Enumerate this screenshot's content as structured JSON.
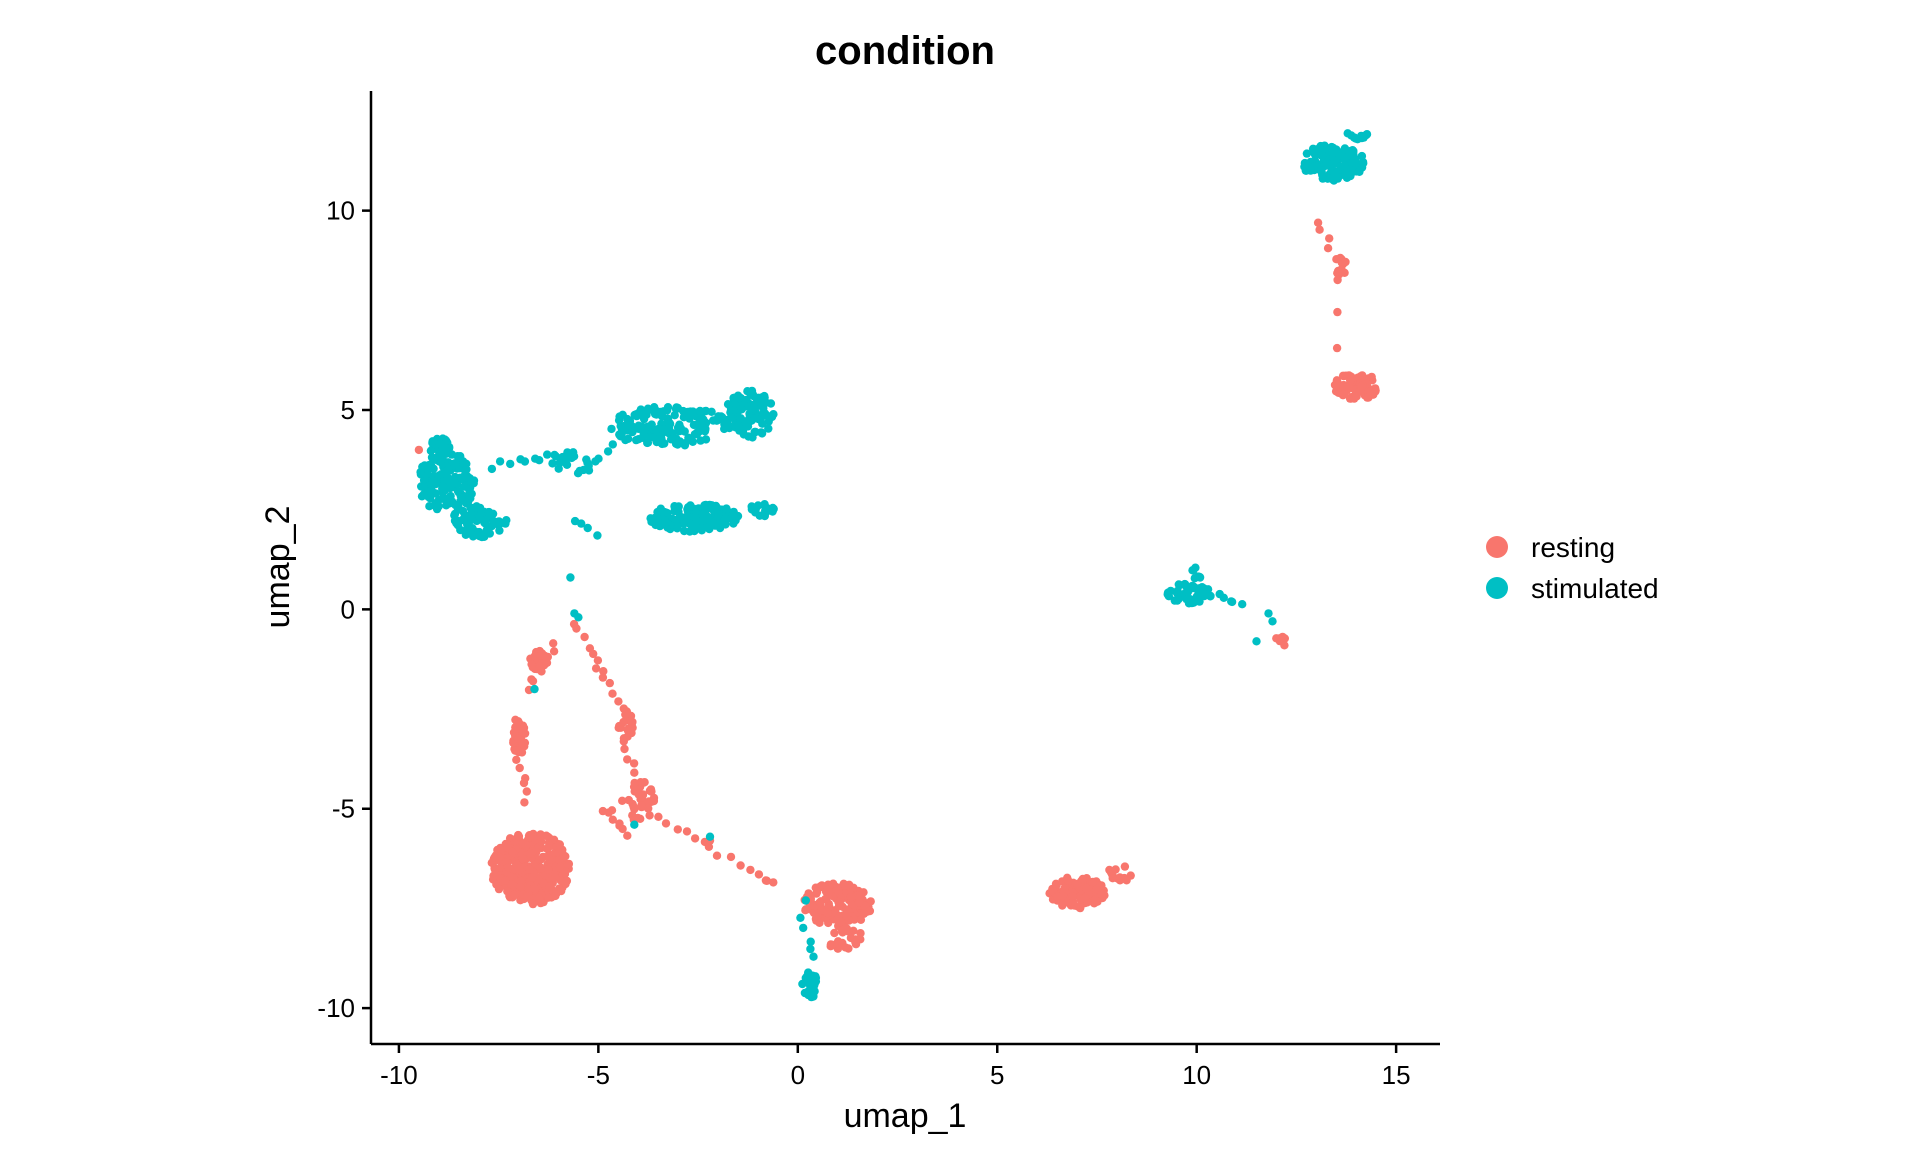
{
  "chart_data": {
    "type": "scatter",
    "title": "condition",
    "xlabel": "umap_1",
    "ylabel": "umap_2",
    "xlim": [
      -10.7,
      16.1
    ],
    "ylim": [
      -10.9,
      13.0
    ],
    "x_ticks": [
      -10,
      -5,
      0,
      5,
      10,
      15
    ],
    "x_tick_labels": [
      "-10",
      "-5",
      "0",
      "5",
      "10",
      "15"
    ],
    "y_ticks": [
      -10,
      -5,
      0,
      5,
      10
    ],
    "y_tick_labels": [
      "-10",
      "-5",
      "0",
      "5",
      "10"
    ],
    "grid": false,
    "legend_position": "right",
    "series": [
      {
        "name": "resting",
        "color": "#F8766D",
        "clusters": [
          {
            "cx": -6.7,
            "cy": -6.5,
            "rx": 1.0,
            "ry": 0.9,
            "n": 360
          },
          {
            "cx": 1.0,
            "cy": -7.4,
            "rx": 0.85,
            "ry": 0.55,
            "n": 150
          },
          {
            "cx": 1.2,
            "cy": -8.3,
            "rx": 0.45,
            "ry": 0.35,
            "n": 25
          },
          {
            "cx": 7.0,
            "cy": -7.1,
            "rx": 0.7,
            "ry": 0.4,
            "n": 110
          },
          {
            "cx": 8.1,
            "cy": -6.6,
            "rx": 0.3,
            "ry": 0.25,
            "n": 14
          },
          {
            "cx": 14.0,
            "cy": 5.6,
            "rx": 0.55,
            "ry": 0.35,
            "n": 80
          },
          {
            "cx": 13.6,
            "cy": 8.6,
            "rx": 0.2,
            "ry": 0.25,
            "n": 14
          },
          {
            "cx": -7.0,
            "cy": -3.2,
            "rx": 0.2,
            "ry": 0.5,
            "n": 40
          },
          {
            "cx": -6.5,
            "cy": -1.3,
            "rx": 0.22,
            "ry": 0.3,
            "n": 22
          },
          {
            "cx": -4.3,
            "cy": -2.9,
            "rx": 0.2,
            "ry": 0.35,
            "n": 20
          },
          {
            "cx": -4.0,
            "cy": -4.8,
            "rx": 0.45,
            "ry": 0.5,
            "n": 35
          },
          {
            "cx": 12.1,
            "cy": -0.75,
            "rx": 0.12,
            "ry": 0.1,
            "n": 7
          }
        ],
        "trails": [
          {
            "from": [
              -5.6,
              -0.4
            ],
            "to": [
              -4.3,
              -2.6
            ],
            "n": 14
          },
          {
            "from": [
              -6.8,
              -2.0
            ],
            "to": [
              -6.1,
              -0.9
            ],
            "n": 8
          },
          {
            "from": [
              -7.0,
              -3.8
            ],
            "to": [
              -6.8,
              -4.8
            ],
            "n": 6
          },
          {
            "from": [
              -4.3,
              -3.3
            ],
            "to": [
              -4.1,
              -4.3
            ],
            "n": 6
          },
          {
            "from": [
              -3.5,
              -5.2
            ],
            "to": [
              -0.6,
              -6.9
            ],
            "n": 14
          },
          {
            "from": [
              13.1,
              9.7
            ],
            "to": [
              13.3,
              9.0
            ],
            "n": 4
          },
          {
            "from": [
              13.5,
              8.2
            ],
            "to": [
              13.6,
              6.6
            ],
            "n": 3
          },
          {
            "from": [
              -4.3,
              -5.6
            ],
            "to": [
              -4.8,
              -5.0
            ],
            "n": 8
          }
        ],
        "points": [
          [
            -9.5,
            4.0
          ],
          [
            -2.2,
            -5.8
          ],
          [
            -0.8,
            -6.8
          ],
          [
            12.2,
            -0.9
          ]
        ]
      },
      {
        "name": "stimulated",
        "color": "#00BFC4",
        "clusters": [
          {
            "cx": -8.8,
            "cy": 3.2,
            "rx": 0.7,
            "ry": 0.8,
            "n": 150
          },
          {
            "cx": -8.0,
            "cy": 2.2,
            "rx": 0.7,
            "ry": 0.4,
            "n": 70
          },
          {
            "cx": -9.0,
            "cy": 4.1,
            "rx": 0.3,
            "ry": 0.2,
            "n": 25
          },
          {
            "cx": -3.2,
            "cy": 4.6,
            "rx": 1.5,
            "ry": 0.5,
            "n": 150
          },
          {
            "cx": -1.2,
            "cy": 4.9,
            "rx": 0.6,
            "ry": 0.6,
            "n": 90
          },
          {
            "cx": -2.6,
            "cy": 2.3,
            "rx": 1.2,
            "ry": 0.35,
            "n": 150
          },
          {
            "cx": -0.9,
            "cy": 2.5,
            "rx": 0.35,
            "ry": 0.18,
            "n": 20
          },
          {
            "cx": -5.7,
            "cy": 3.7,
            "rx": 0.5,
            "ry": 0.35,
            "n": 20
          },
          {
            "cx": 13.4,
            "cy": 11.2,
            "rx": 0.8,
            "ry": 0.45,
            "n": 140
          },
          {
            "cx": 14.0,
            "cy": 11.9,
            "rx": 0.3,
            "ry": 0.15,
            "n": 12
          },
          {
            "cx": 9.8,
            "cy": 0.4,
            "rx": 0.6,
            "ry": 0.25,
            "n": 50
          },
          {
            "cx": 10.0,
            "cy": 0.9,
            "rx": 0.15,
            "ry": 0.2,
            "n": 8
          },
          {
            "cx": 0.3,
            "cy": -9.4,
            "rx": 0.2,
            "ry": 0.35,
            "n": 25
          }
        ],
        "trails": [
          {
            "from": [
              -7.6,
              3.6
            ],
            "to": [
              -6.2,
              3.8
            ],
            "n": 8
          },
          {
            "from": [
              -5.3,
              3.5
            ],
            "to": [
              -4.4,
              4.2
            ],
            "n": 6
          },
          {
            "from": [
              10.5,
              0.3
            ],
            "to": [
              11.1,
              0.2
            ],
            "n": 5
          },
          {
            "from": [
              0.1,
              -7.8
            ],
            "to": [
              0.4,
              -8.7
            ],
            "n": 5
          },
          {
            "from": [
              -5.6,
              2.2
            ],
            "to": [
              -5.0,
              1.9
            ],
            "n": 4
          }
        ],
        "points": [
          [
            -5.7,
            0.8
          ],
          [
            -5.6,
            -0.1
          ],
          [
            -5.5,
            -0.2
          ],
          [
            11.8,
            -0.1
          ],
          [
            11.5,
            -0.8
          ],
          [
            -2.2,
            -5.7
          ],
          [
            -4.1,
            -5.4
          ],
          [
            -6.6,
            -2.0
          ],
          [
            0.2,
            -7.3
          ],
          [
            11.9,
            -0.3
          ]
        ]
      }
    ]
  }
}
